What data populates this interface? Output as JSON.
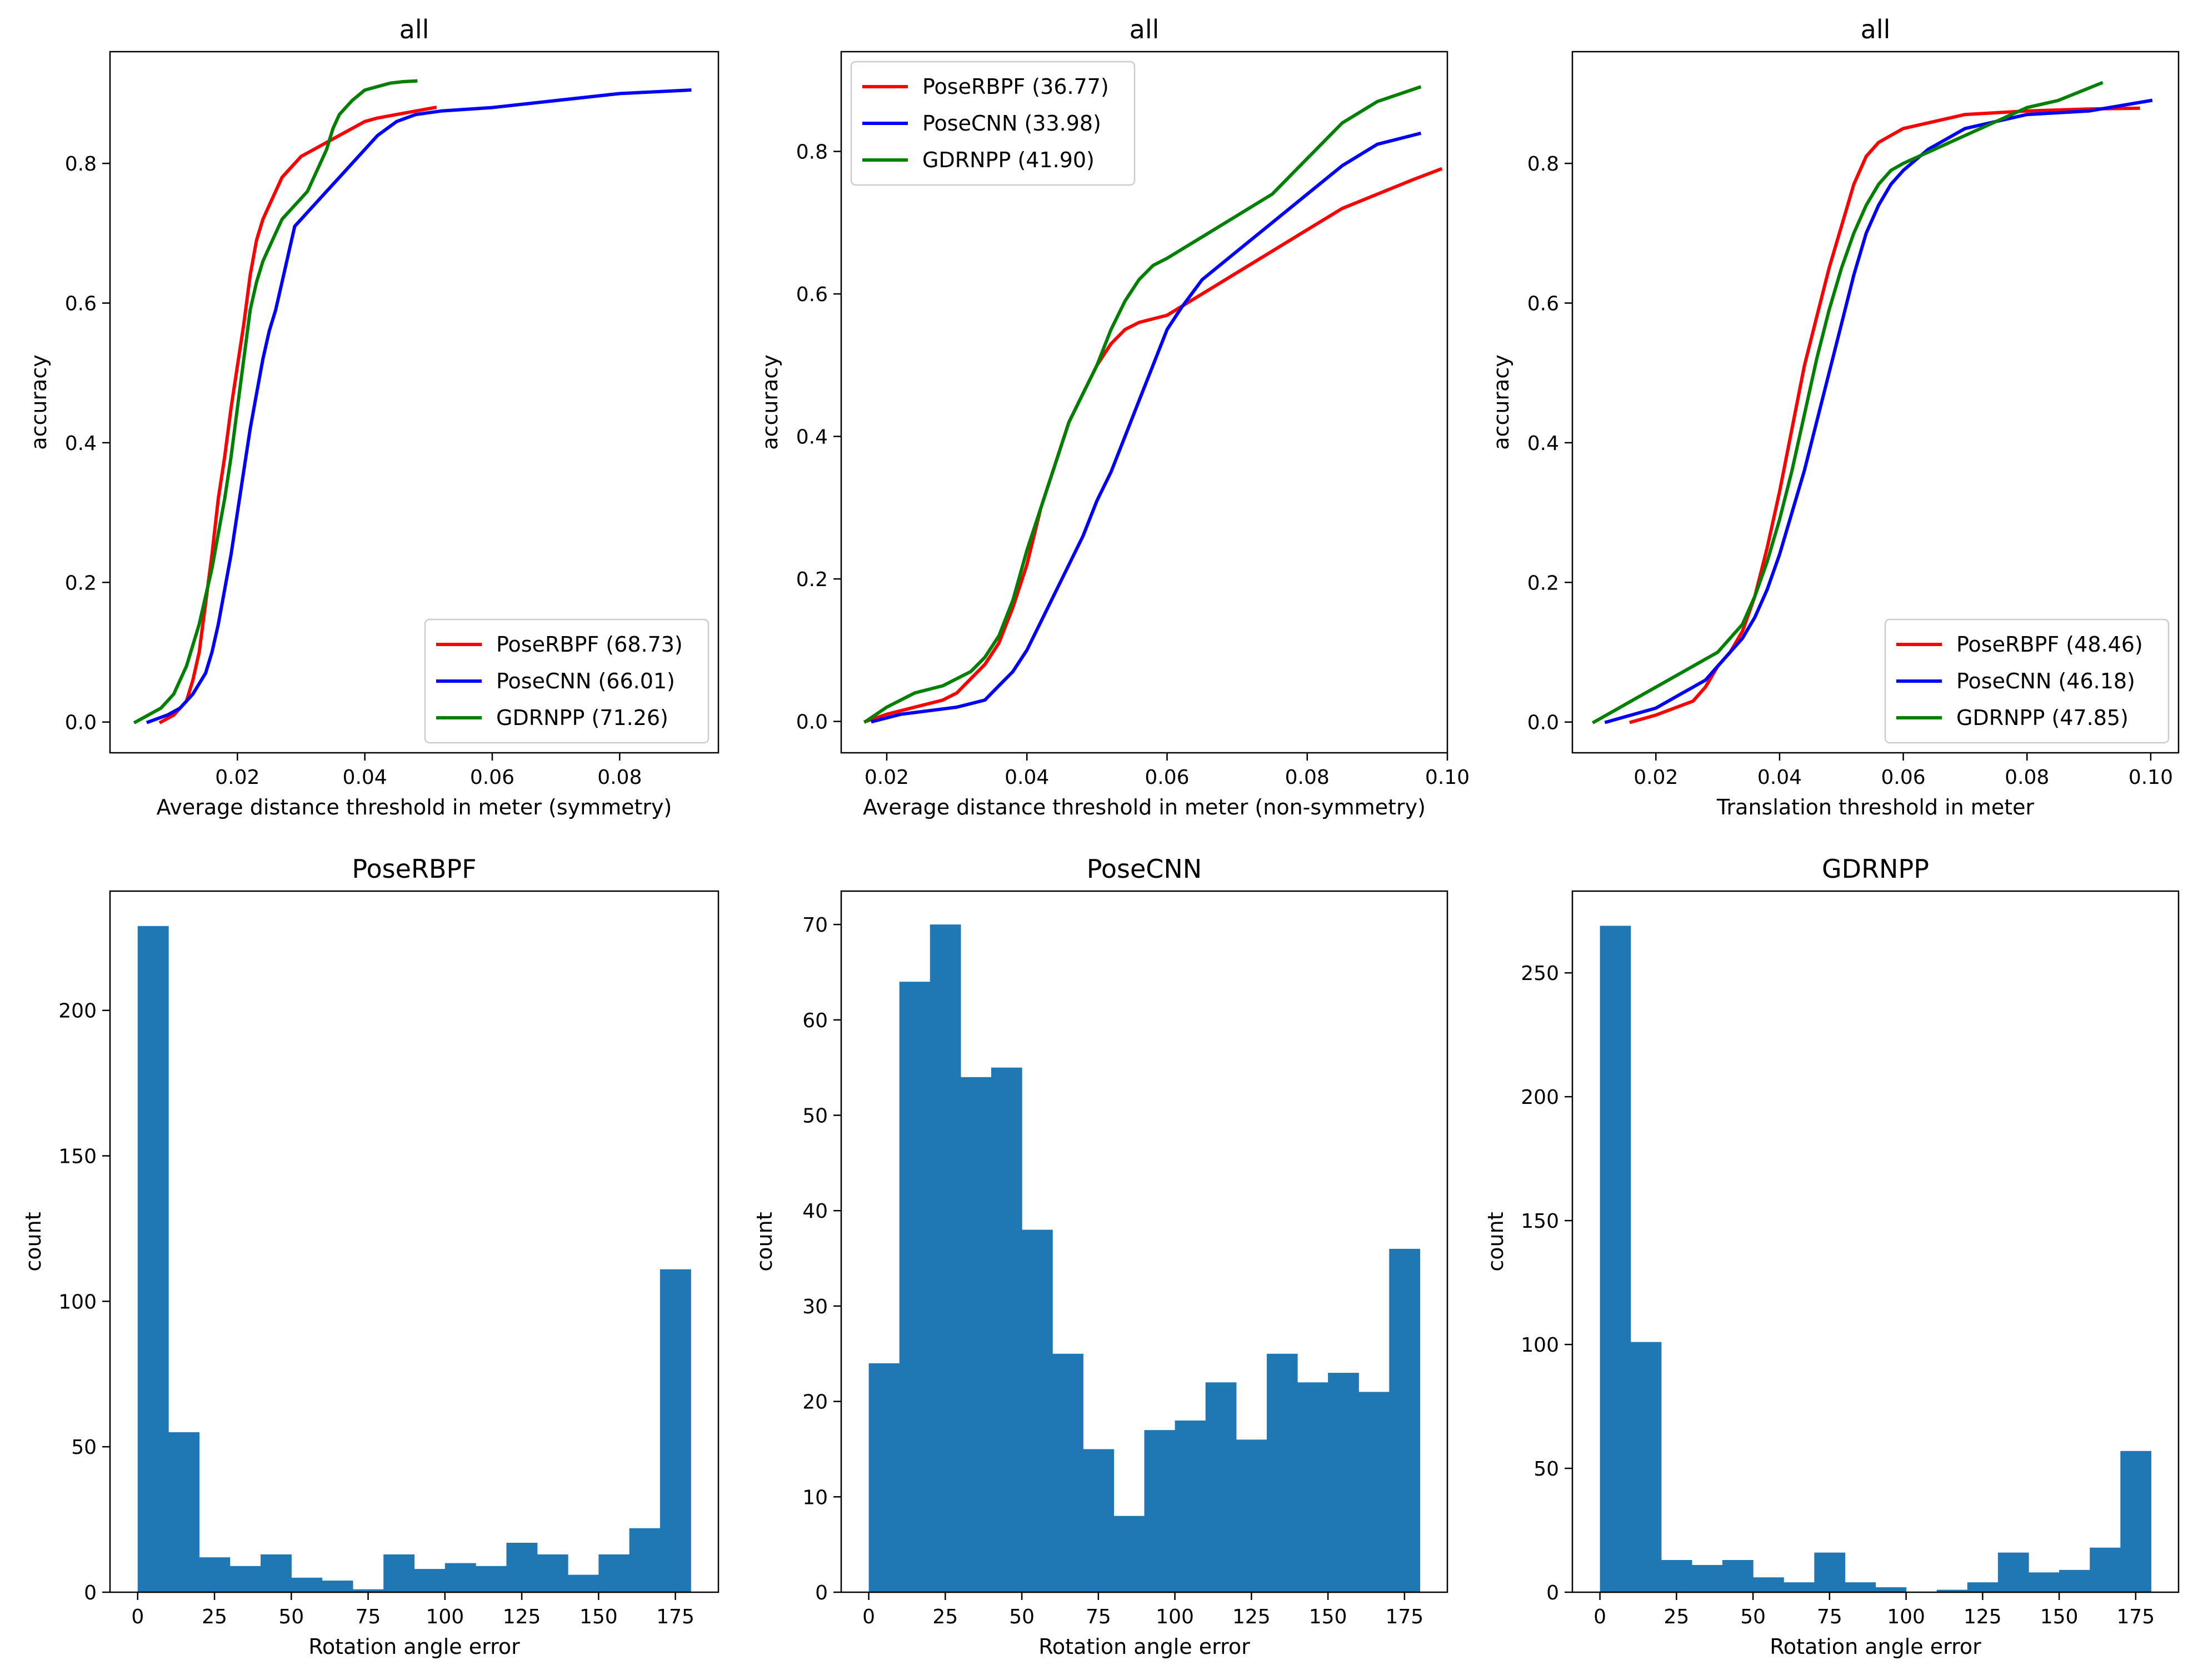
{
  "chart_data": [
    {
      "type": "line",
      "title": "all",
      "xlabel": "Average distance threshold in meter (symmetry)",
      "ylabel": "accuracy",
      "xlim": [
        0.0,
        0.0955
      ],
      "ylim": [
        -0.044,
        0.96
      ],
      "xticks": [
        0.02,
        0.04,
        0.06,
        0.08
      ],
      "xtick_labels": [
        "0.02",
        "0.04",
        "0.06",
        "0.08"
      ],
      "yticks": [
        0.0,
        0.2,
        0.4,
        0.6,
        0.8
      ],
      "ytick_labels": [
        "0.0",
        "0.2",
        "0.4",
        "0.6",
        "0.8"
      ],
      "legend_position": "lower-right",
      "series": [
        {
          "name": "PoseRBPF",
          "legend": "PoseRBPF (68.73)",
          "color": "#ff0000",
          "x": [
            0.008,
            0.01,
            0.012,
            0.013,
            0.014,
            0.015,
            0.016,
            0.017,
            0.018,
            0.019,
            0.02,
            0.021,
            0.022,
            0.023,
            0.024,
            0.025,
            0.026,
            0.027,
            0.028,
            0.03,
            0.032,
            0.034,
            0.036,
            0.038,
            0.04,
            0.042,
            0.045,
            0.048,
            0.051
          ],
          "y": [
            0.0,
            0.01,
            0.03,
            0.06,
            0.1,
            0.17,
            0.24,
            0.32,
            0.38,
            0.45,
            0.51,
            0.57,
            0.64,
            0.69,
            0.72,
            0.74,
            0.76,
            0.78,
            0.79,
            0.81,
            0.82,
            0.83,
            0.84,
            0.85,
            0.86,
            0.865,
            0.87,
            0.875,
            0.88
          ]
        },
        {
          "name": "PoseCNN",
          "legend": "PoseCNN (66.01)",
          "color": "#0000ff",
          "x": [
            0.006,
            0.009,
            0.011,
            0.013,
            0.015,
            0.016,
            0.017,
            0.018,
            0.019,
            0.02,
            0.021,
            0.022,
            0.023,
            0.024,
            0.025,
            0.026,
            0.027,
            0.028,
            0.029,
            0.03,
            0.031,
            0.032,
            0.034,
            0.036,
            0.038,
            0.04,
            0.042,
            0.045,
            0.048,
            0.052,
            0.06,
            0.07,
            0.08,
            0.091
          ],
          "y": [
            0.0,
            0.01,
            0.02,
            0.04,
            0.07,
            0.1,
            0.14,
            0.19,
            0.24,
            0.3,
            0.36,
            0.42,
            0.47,
            0.52,
            0.56,
            0.59,
            0.63,
            0.67,
            0.71,
            0.72,
            0.73,
            0.74,
            0.76,
            0.78,
            0.8,
            0.82,
            0.84,
            0.86,
            0.87,
            0.875,
            0.88,
            0.89,
            0.9,
            0.905
          ]
        },
        {
          "name": "GDRNPP",
          "legend": "GDRNPP (71.26)",
          "color": "#008000",
          "x": [
            0.004,
            0.006,
            0.008,
            0.01,
            0.011,
            0.012,
            0.013,
            0.014,
            0.015,
            0.016,
            0.017,
            0.018,
            0.019,
            0.02,
            0.021,
            0.022,
            0.023,
            0.024,
            0.025,
            0.026,
            0.027,
            0.028,
            0.029,
            0.03,
            0.031,
            0.032,
            0.033,
            0.034,
            0.035,
            0.036,
            0.038,
            0.04,
            0.042,
            0.044,
            0.046,
            0.048
          ],
          "y": [
            0.0,
            0.01,
            0.02,
            0.04,
            0.06,
            0.08,
            0.11,
            0.14,
            0.18,
            0.22,
            0.27,
            0.32,
            0.38,
            0.45,
            0.52,
            0.59,
            0.63,
            0.66,
            0.68,
            0.7,
            0.72,
            0.73,
            0.74,
            0.75,
            0.76,
            0.78,
            0.8,
            0.82,
            0.85,
            0.87,
            0.89,
            0.905,
            0.91,
            0.915,
            0.917,
            0.918
          ]
        }
      ]
    },
    {
      "type": "line",
      "title": "all",
      "xlabel": "Average distance threshold in meter (non-symmetry)",
      "ylabel": "accuracy",
      "xlim": [
        0.0135,
        0.1
      ],
      "ylim": [
        -0.044,
        0.94
      ],
      "xticks": [
        0.02,
        0.04,
        0.06,
        0.08,
        0.1
      ],
      "xtick_labels": [
        "0.02",
        "0.04",
        "0.06",
        "0.08",
        "0.10"
      ],
      "yticks": [
        0.0,
        0.2,
        0.4,
        0.6,
        0.8
      ],
      "ytick_labels": [
        "0.0",
        "0.2",
        "0.4",
        "0.6",
        "0.8"
      ],
      "legend_position": "upper-left",
      "series": [
        {
          "name": "PoseRBPF",
          "legend": "PoseRBPF (36.77)",
          "color": "#ff0000",
          "x": [
            0.017,
            0.02,
            0.024,
            0.028,
            0.03,
            0.032,
            0.034,
            0.036,
            0.038,
            0.04,
            0.042,
            0.044,
            0.046,
            0.048,
            0.05,
            0.052,
            0.054,
            0.056,
            0.058,
            0.06,
            0.065,
            0.07,
            0.075,
            0.08,
            0.085,
            0.09,
            0.095,
            0.099
          ],
          "y": [
            0.0,
            0.01,
            0.02,
            0.03,
            0.04,
            0.06,
            0.08,
            0.11,
            0.16,
            0.22,
            0.3,
            0.36,
            0.42,
            0.46,
            0.5,
            0.53,
            0.55,
            0.56,
            0.565,
            0.57,
            0.6,
            0.63,
            0.66,
            0.69,
            0.72,
            0.74,
            0.76,
            0.775
          ]
        },
        {
          "name": "PoseCNN",
          "legend": "PoseCNN (33.98)",
          "color": "#0000ff",
          "x": [
            0.018,
            0.022,
            0.026,
            0.03,
            0.034,
            0.036,
            0.038,
            0.04,
            0.042,
            0.044,
            0.046,
            0.048,
            0.05,
            0.052,
            0.054,
            0.056,
            0.058,
            0.06,
            0.062,
            0.065,
            0.07,
            0.075,
            0.08,
            0.085,
            0.09,
            0.096
          ],
          "y": [
            0.0,
            0.01,
            0.015,
            0.02,
            0.03,
            0.05,
            0.07,
            0.1,
            0.14,
            0.18,
            0.22,
            0.26,
            0.31,
            0.35,
            0.4,
            0.45,
            0.5,
            0.55,
            0.58,
            0.62,
            0.66,
            0.7,
            0.74,
            0.78,
            0.81,
            0.825
          ]
        },
        {
          "name": "GDRNPP",
          "legend": "GDRNPP (41.90)",
          "color": "#008000",
          "x": [
            0.017,
            0.02,
            0.024,
            0.028,
            0.032,
            0.034,
            0.036,
            0.038,
            0.04,
            0.042,
            0.044,
            0.046,
            0.048,
            0.05,
            0.052,
            0.054,
            0.056,
            0.058,
            0.06,
            0.065,
            0.07,
            0.075,
            0.08,
            0.085,
            0.09,
            0.096
          ],
          "y": [
            0.0,
            0.02,
            0.04,
            0.05,
            0.07,
            0.09,
            0.12,
            0.17,
            0.24,
            0.3,
            0.36,
            0.42,
            0.46,
            0.5,
            0.55,
            0.59,
            0.62,
            0.64,
            0.65,
            0.68,
            0.71,
            0.74,
            0.79,
            0.84,
            0.87,
            0.89
          ]
        }
      ]
    },
    {
      "type": "line",
      "title": "all",
      "xlabel": "Translation threshold in meter",
      "ylabel": "accuracy",
      "xlim": [
        0.0065,
        0.1045
      ],
      "ylim": [
        -0.044,
        0.96
      ],
      "xticks": [
        0.02,
        0.04,
        0.06,
        0.08,
        0.1
      ],
      "xtick_labels": [
        "0.02",
        "0.04",
        "0.06",
        "0.08",
        "0.10"
      ],
      "yticks": [
        0.0,
        0.2,
        0.4,
        0.6,
        0.8
      ],
      "ytick_labels": [
        "0.0",
        "0.2",
        "0.4",
        "0.6",
        "0.8"
      ],
      "legend_position": "lower-right",
      "series": [
        {
          "name": "PoseRBPF",
          "legend": "PoseRBPF (48.46)",
          "color": "#ff0000",
          "x": [
            0.016,
            0.02,
            0.023,
            0.026,
            0.028,
            0.03,
            0.032,
            0.034,
            0.036,
            0.038,
            0.04,
            0.042,
            0.044,
            0.046,
            0.048,
            0.05,
            0.052,
            0.054,
            0.056,
            0.058,
            0.06,
            0.065,
            0.07,
            0.08,
            0.09,
            0.098
          ],
          "y": [
            0.0,
            0.01,
            0.02,
            0.03,
            0.05,
            0.08,
            0.1,
            0.13,
            0.18,
            0.25,
            0.33,
            0.42,
            0.51,
            0.58,
            0.65,
            0.71,
            0.77,
            0.81,
            0.83,
            0.84,
            0.85,
            0.86,
            0.87,
            0.875,
            0.878,
            0.879
          ]
        },
        {
          "name": "PoseCNN",
          "legend": "PoseCNN (46.18)",
          "color": "#0000ff",
          "x": [
            0.012,
            0.016,
            0.02,
            0.024,
            0.028,
            0.03,
            0.032,
            0.034,
            0.036,
            0.038,
            0.04,
            0.042,
            0.044,
            0.046,
            0.048,
            0.05,
            0.052,
            0.054,
            0.056,
            0.058,
            0.06,
            0.064,
            0.07,
            0.08,
            0.09,
            0.1
          ],
          "y": [
            0.0,
            0.01,
            0.02,
            0.04,
            0.06,
            0.08,
            0.1,
            0.12,
            0.15,
            0.19,
            0.24,
            0.3,
            0.36,
            0.43,
            0.5,
            0.57,
            0.64,
            0.7,
            0.74,
            0.77,
            0.79,
            0.82,
            0.85,
            0.87,
            0.875,
            0.89
          ]
        },
        {
          "name": "GDRNPP",
          "legend": "GDRNPP (47.85)",
          "color": "#008000",
          "x": [
            0.01,
            0.014,
            0.018,
            0.022,
            0.026,
            0.03,
            0.034,
            0.036,
            0.038,
            0.04,
            0.042,
            0.044,
            0.046,
            0.048,
            0.05,
            0.052,
            0.054,
            0.056,
            0.058,
            0.06,
            0.065,
            0.07,
            0.075,
            0.08,
            0.085,
            0.092
          ],
          "y": [
            0.0,
            0.02,
            0.04,
            0.06,
            0.08,
            0.1,
            0.14,
            0.18,
            0.23,
            0.29,
            0.36,
            0.44,
            0.52,
            0.59,
            0.65,
            0.7,
            0.74,
            0.77,
            0.79,
            0.8,
            0.82,
            0.84,
            0.86,
            0.88,
            0.89,
            0.915
          ]
        }
      ]
    },
    {
      "type": "bar",
      "title": "PoseRBPF",
      "xlabel": "Rotation angle error",
      "ylabel": "count",
      "xlim": [
        -9,
        189
      ],
      "ylim": [
        0,
        241
      ],
      "bin_edges": [
        0,
        10,
        20,
        30,
        40,
        50,
        60,
        70,
        80,
        90,
        100,
        110,
        120,
        130,
        140,
        150,
        160,
        170,
        180
      ],
      "values": [
        229,
        55,
        12,
        9,
        13,
        5,
        4,
        1,
        13,
        8,
        10,
        9,
        17,
        13,
        6,
        13,
        22,
        111
      ],
      "xticks": [
        0,
        25,
        50,
        75,
        100,
        125,
        150,
        175
      ],
      "xtick_labels": [
        "0",
        "25",
        "50",
        "75",
        "100",
        "125",
        "150",
        "175"
      ],
      "yticks": [
        0,
        50,
        100,
        150,
        200
      ],
      "ytick_labels": [
        "0",
        "50",
        "100",
        "150",
        "200"
      ],
      "bar_color": "#1f77b4"
    },
    {
      "type": "bar",
      "title": "PoseCNN",
      "xlabel": "Rotation angle error",
      "ylabel": "count",
      "xlim": [
        -9,
        189
      ],
      "ylim": [
        0,
        73.5
      ],
      "bin_edges": [
        0,
        10,
        20,
        30,
        40,
        50,
        60,
        70,
        80,
        90,
        100,
        110,
        120,
        130,
        140,
        150,
        160,
        170,
        180
      ],
      "values": [
        24,
        64,
        70,
        54,
        55,
        38,
        25,
        15,
        8,
        17,
        18,
        22,
        16,
        25,
        22,
        23,
        21,
        36
      ],
      "xticks": [
        0,
        25,
        50,
        75,
        100,
        125,
        150,
        175
      ],
      "xtick_labels": [
        "0",
        "25",
        "50",
        "75",
        "100",
        "125",
        "150",
        "175"
      ],
      "yticks": [
        0,
        10,
        20,
        30,
        40,
        50,
        60,
        70
      ],
      "ytick_labels": [
        "0",
        "10",
        "20",
        "30",
        "40",
        "50",
        "60",
        "70"
      ],
      "bar_color": "#1f77b4"
    },
    {
      "type": "bar",
      "title": "GDRNPP",
      "xlabel": "Rotation angle error",
      "ylabel": "count",
      "xlim": [
        -9,
        189
      ],
      "ylim": [
        0,
        283
      ],
      "bin_edges": [
        0,
        10,
        20,
        30,
        40,
        50,
        60,
        70,
        80,
        90,
        100,
        110,
        120,
        130,
        140,
        150,
        160,
        170,
        180
      ],
      "values": [
        269,
        101,
        13,
        11,
        13,
        6,
        4,
        16,
        4,
        2,
        0,
        1,
        4,
        16,
        8,
        9,
        18,
        57
      ],
      "xticks": [
        0,
        25,
        50,
        75,
        100,
        125,
        150,
        175
      ],
      "xtick_labels": [
        "0",
        "25",
        "50",
        "75",
        "100",
        "125",
        "150",
        "175"
      ],
      "yticks": [
        0,
        50,
        100,
        150,
        200,
        250
      ],
      "ytick_labels": [
        "0",
        "50",
        "100",
        "150",
        "200",
        "250"
      ],
      "bar_color": "#1f77b4"
    }
  ]
}
